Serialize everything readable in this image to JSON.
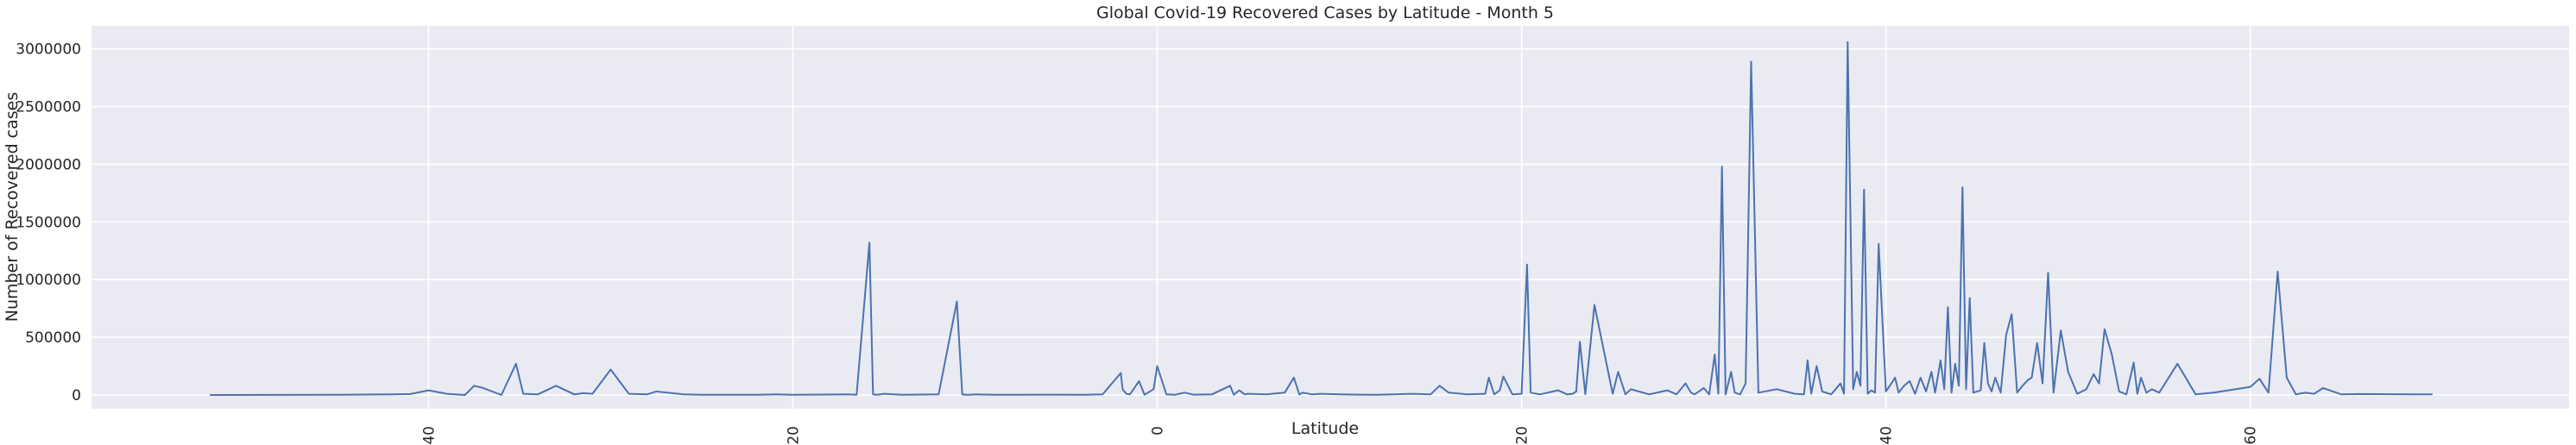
{
  "chart_data": {
    "type": "line",
    "title": "Global Covid-19 Recovered Cases by Latitude - Month 5",
    "xlabel": "Latitude",
    "ylabel": "Number of Recovered cases",
    "xlim": [
      -58.5,
      77.5
    ],
    "ylim": [
      -120000,
      3200000
    ],
    "x_ticks": [
      -40,
      -20,
      0,
      20,
      40,
      60
    ],
    "y_ticks": [
      0,
      500000,
      1000000,
      1500000,
      2000000,
      2500000,
      3000000
    ],
    "grid": true,
    "line_color": "#4c72b0",
    "background_color": "#eaeaf2",
    "series": [
      {
        "x": [
          -52,
          -45,
          -42,
          -41,
          -40,
          -39,
          -38,
          -37.5,
          -37,
          -36,
          -35.2,
          -34.8,
          -34,
          -33,
          -32,
          -31.5,
          -31,
          -30,
          -29,
          -28,
          -27.5,
          -26,
          -25,
          -24,
          -22,
          -21,
          -20,
          -19,
          -17,
          -16.5,
          -15.8,
          -15.6,
          -15.4,
          -15,
          -14,
          -13.5,
          -12,
          -11,
          -10.7,
          -10.5,
          -10.3,
          -10,
          -9,
          -8,
          -6,
          -4,
          -3,
          -2,
          -1.9,
          -1.7,
          -1.5,
          -1,
          -0.7,
          -0.2,
          0,
          0.5,
          1,
          1.2,
          1.5,
          2,
          3,
          4,
          4.2,
          4.5,
          4.8,
          5,
          6,
          7,
          7.5,
          7.8,
          8,
          8.5,
          9,
          10,
          11,
          12,
          13,
          14,
          15,
          15.5,
          16,
          17,
          18,
          18.2,
          18.5,
          18.8,
          19,
          19.5,
          20,
          20.3,
          20.5,
          21,
          22,
          22.5,
          22.8,
          23,
          23.2,
          23.5,
          24,
          25,
          25.3,
          25.7,
          26,
          27,
          28,
          28.5,
          29,
          29.3,
          29.5,
          30,
          30.3,
          30.6,
          30.8,
          31,
          31.2,
          31.5,
          31.7,
          32,
          32.3,
          32.6,
          33,
          34,
          35,
          35.5,
          35.7,
          35.9,
          36.2,
          36.5,
          37,
          37.5,
          37.7,
          37.9,
          38.2,
          38.4,
          38.6,
          38.8,
          39,
          39.2,
          39.4,
          39.6,
          40,
          40.3,
          40.5,
          40.7,
          41,
          41.3,
          41.6,
          41.9,
          42.2,
          42.5,
          42.7,
          43,
          43.2,
          43.4,
          43.6,
          43.8,
          44,
          44.2,
          44.4,
          44.6,
          44.8,
          45,
          45.2,
          45.4,
          45.6,
          45.8,
          46,
          46.3,
          46.6,
          46.9,
          47.2,
          47.5,
          47.8,
          48,
          48.3,
          48.6,
          48.9,
          49.2,
          49.6,
          50,
          50.5,
          51,
          51.4,
          51.7,
          52,
          52.4,
          52.8,
          53.2,
          53.6,
          53.8,
          54,
          54.3,
          54.6,
          55,
          56,
          57,
          58,
          60,
          60.5,
          61,
          61.5,
          62,
          62.5,
          63,
          63.5,
          64,
          65,
          66,
          70
        ],
        "y": [
          0,
          2000,
          5000,
          8000,
          40000,
          10000,
          0,
          80000,
          60000,
          0,
          270000,
          10000,
          5000,
          80000,
          5000,
          15000,
          10000,
          220000,
          10000,
          5000,
          30000,
          5000,
          2000,
          1000,
          1000,
          5000,
          2000,
          3000,
          5000,
          2000,
          1320000,
          5000,
          1000,
          10000,
          2000,
          3000,
          5000,
          810000,
          5000,
          2000,
          1000,
          5000,
          2000,
          1000,
          3000,
          2000,
          5000,
          190000,
          50000,
          10000,
          5000,
          120000,
          2000,
          50000,
          250000,
          5000,
          2000,
          10000,
          20000,
          3000,
          5000,
          80000,
          2000,
          40000,
          5000,
          10000,
          5000,
          20000,
          150000,
          5000,
          20000,
          5000,
          10000,
          5000,
          3000,
          2000,
          5000,
          10000,
          5000,
          80000,
          20000,
          5000,
          10000,
          150000,
          5000,
          40000,
          160000,
          5000,
          10000,
          1130000,
          20000,
          5000,
          40000,
          5000,
          10000,
          30000,
          460000,
          5000,
          780000,
          10000,
          200000,
          5000,
          50000,
          5000,
          40000,
          5000,
          100000,
          20000,
          5000,
          60000,
          5000,
          350000,
          10000,
          1980000,
          5000,
          200000,
          20000,
          5000,
          100000,
          2890000,
          20000,
          50000,
          10000,
          5000,
          300000,
          10000,
          250000,
          30000,
          5000,
          100000,
          10000,
          3060000,
          50000,
          200000,
          80000,
          1780000,
          10000,
          40000,
          20000,
          1310000,
          30000,
          100000,
          150000,
          20000,
          80000,
          120000,
          10000,
          150000,
          30000,
          200000,
          20000,
          300000,
          50000,
          760000,
          20000,
          270000,
          80000,
          1800000,
          50000,
          840000,
          20000,
          30000,
          40000,
          450000,
          100000,
          30000,
          150000,
          20000,
          520000,
          700000,
          20000,
          80000,
          130000,
          150000,
          450000,
          100000,
          1060000,
          20000,
          560000,
          200000,
          10000,
          50000,
          180000,
          100000,
          570000,
          350000,
          30000,
          5000,
          280000,
          10000,
          150000,
          20000,
          50000,
          20000,
          270000,
          5000,
          20000,
          70000,
          140000,
          20000,
          1070000,
          150000,
          5000,
          20000,
          10000,
          60000,
          5000,
          8000,
          5000
        ]
      }
    ]
  }
}
